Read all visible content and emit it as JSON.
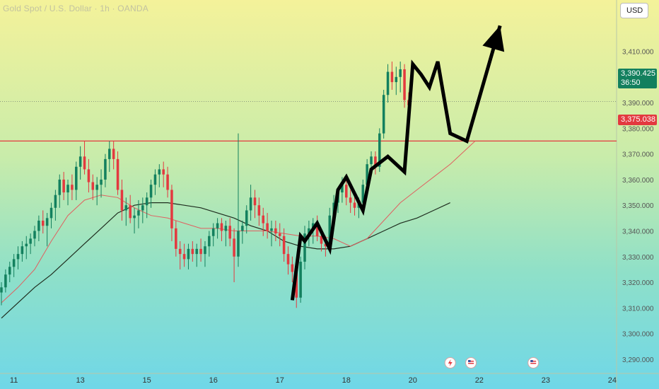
{
  "header": {
    "title": "Gold Spot / U.S. Dollar · 1h · OANDA",
    "currency": "USD"
  },
  "price_tag": {
    "price": "3,390.425",
    "countdown": "36:50"
  },
  "level_tag": {
    "price": "3,375.038"
  },
  "colors": {
    "up": "#13805e",
    "down": "#e3393f",
    "ma_fast": "#e06060",
    "ma_slow": "#1f2d1f",
    "level": "#e3393f",
    "arrow": "#000000"
  },
  "chart_data": {
    "type": "candlestick",
    "symbol": "Gold Spot / U.S. Dollar",
    "timeframe": "1h",
    "ylim": [
      3285,
      3430
    ],
    "yticks": [
      3290,
      3300,
      3310,
      3320,
      3330,
      3340,
      3350,
      3360,
      3370,
      3380,
      3390,
      3400,
      3410
    ],
    "ytick_labels": [
      "3,290.000",
      "3,300.000",
      "3,310.000",
      "3,320.000",
      "3,330.000",
      "3,340.000",
      "3,350.000",
      "3,360.000",
      "3,370.000",
      "3,380.000",
      "3,390.000",
      "3,400.000",
      "3,410.000"
    ],
    "xlim": [
      0,
      146
    ],
    "xticks": [
      {
        "x": 3,
        "label": "11"
      },
      {
        "x": 19,
        "label": "13"
      },
      {
        "x": 35,
        "label": "15"
      },
      {
        "x": 51,
        "label": "16"
      },
      {
        "x": 67,
        "label": "17"
      },
      {
        "x": 83,
        "label": "18"
      },
      {
        "x": 99,
        "label": "20"
      },
      {
        "x": 115,
        "label": "22"
      },
      {
        "x": 131,
        "label": "23"
      },
      {
        "x": 147,
        "label": "24"
      }
    ],
    "current_price": 3390.425,
    "horizontal_level": 3375.038,
    "candles": [
      [
        3316,
        3320,
        3311,
        3318
      ],
      [
        3318,
        3325,
        3316,
        3323
      ],
      [
        3323,
        3328,
        3320,
        3326
      ],
      [
        3326,
        3331,
        3322,
        3329
      ],
      [
        3329,
        3334,
        3325,
        3331
      ],
      [
        3331,
        3336,
        3328,
        3334
      ],
      [
        3334,
        3338,
        3329,
        3335
      ],
      [
        3335,
        3339,
        3331,
        3337
      ],
      [
        3337,
        3342,
        3334,
        3340
      ],
      [
        3340,
        3346,
        3336,
        3344
      ],
      [
        3344,
        3348,
        3339,
        3342
      ],
      [
        3342,
        3347,
        3334,
        3345
      ],
      [
        3345,
        3351,
        3341,
        3349
      ],
      [
        3349,
        3356,
        3344,
        3354
      ],
      [
        3354,
        3362,
        3349,
        3360
      ],
      [
        3360,
        3363,
        3352,
        3355
      ],
      [
        3355,
        3360,
        3350,
        3358
      ],
      [
        3358,
        3362,
        3352,
        3356
      ],
      [
        3356,
        3367,
        3352,
        3365
      ],
      [
        3365,
        3373,
        3360,
        3369
      ],
      [
        3369,
        3375,
        3362,
        3364
      ],
      [
        3364,
        3368,
        3355,
        3359
      ],
      [
        3359,
        3362,
        3352,
        3356
      ],
      [
        3356,
        3361,
        3350,
        3358
      ],
      [
        3358,
        3364,
        3353,
        3360
      ],
      [
        3360,
        3370,
        3357,
        3368
      ],
      [
        3368,
        3375,
        3363,
        3372
      ],
      [
        3372,
        3375,
        3364,
        3368
      ],
      [
        3368,
        3371,
        3354,
        3356
      ],
      [
        3356,
        3360,
        3344,
        3348
      ],
      [
        3348,
        3353,
        3342,
        3350
      ],
      [
        3350,
        3354,
        3343,
        3345
      ],
      [
        3345,
        3349,
        3339,
        3346
      ],
      [
        3346,
        3352,
        3341,
        3348
      ],
      [
        3348,
        3353,
        3343,
        3350
      ],
      [
        3350,
        3355,
        3345,
        3353
      ],
      [
        3353,
        3360,
        3349,
        3358
      ],
      [
        3358,
        3364,
        3354,
        3362
      ],
      [
        3362,
        3366,
        3357,
        3364
      ],
      [
        3364,
        3367,
        3357,
        3362
      ],
      [
        3362,
        3365,
        3353,
        3356
      ],
      [
        3356,
        3358,
        3336,
        3341
      ],
      [
        3341,
        3344,
        3330,
        3333
      ],
      [
        3333,
        3336,
        3325,
        3331
      ],
      [
        3331,
        3335,
        3326,
        3329
      ],
      [
        3329,
        3335,
        3325,
        3333
      ],
      [
        3333,
        3336,
        3328,
        3331
      ],
      [
        3331,
        3335,
        3326,
        3333
      ],
      [
        3333,
        3337,
        3328,
        3331
      ],
      [
        3331,
        3336,
        3326,
        3334
      ],
      [
        3334,
        3340,
        3330,
        3338
      ],
      [
        3338,
        3343,
        3334,
        3341
      ],
      [
        3341,
        3345,
        3337,
        3343
      ],
      [
        3343,
        3345,
        3336,
        3340
      ],
      [
        3340,
        3344,
        3334,
        3342
      ],
      [
        3342,
        3345,
        3334,
        3337
      ],
      [
        3337,
        3341,
        3320,
        3330
      ],
      [
        3330,
        3378,
        3326,
        3340
      ],
      [
        3340,
        3344,
        3335,
        3342
      ],
      [
        3342,
        3350,
        3339,
        3348
      ],
      [
        3348,
        3358,
        3344,
        3353
      ],
      [
        3353,
        3356,
        3345,
        3350
      ],
      [
        3350,
        3353,
        3342,
        3346
      ],
      [
        3346,
        3349,
        3338,
        3343
      ],
      [
        3343,
        3347,
        3337,
        3340
      ],
      [
        3340,
        3344,
        3334,
        3341
      ],
      [
        3341,
        3344,
        3336,
        3339
      ],
      [
        3339,
        3343,
        3334,
        3338
      ],
      [
        3338,
        3341,
        3328,
        3331
      ],
      [
        3331,
        3334,
        3323,
        3327
      ],
      [
        3327,
        3330,
        3320,
        3324
      ],
      [
        3324,
        3327,
        3310,
        3314
      ],
      [
        3314,
        3330,
        3312,
        3328
      ],
      [
        3328,
        3342,
        3325,
        3339
      ],
      [
        3339,
        3344,
        3334,
        3341
      ],
      [
        3341,
        3345,
        3335,
        3343
      ],
      [
        3343,
        3346,
        3336,
        3338
      ],
      [
        3338,
        3341,
        3332,
        3335
      ],
      [
        3335,
        3338,
        3330,
        3334
      ],
      [
        3334,
        3349,
        3332,
        3346
      ],
      [
        3346,
        3354,
        3342,
        3351
      ],
      [
        3351,
        3357,
        3347,
        3355
      ],
      [
        3355,
        3361,
        3351,
        3358
      ],
      [
        3358,
        3360,
        3350,
        3353
      ],
      [
        3353,
        3356,
        3347,
        3351
      ],
      [
        3351,
        3354,
        3346,
        3349
      ],
      [
        3349,
        3353,
        3345,
        3351
      ],
      [
        3351,
        3360,
        3349,
        3358
      ],
      [
        3358,
        3368,
        3355,
        3366
      ],
      [
        3366,
        3371,
        3362,
        3369
      ],
      [
        3369,
        3371,
        3362,
        3365
      ],
      [
        3365,
        3380,
        3363,
        3378
      ],
      [
        3378,
        3395,
        3376,
        3393
      ],
      [
        3393,
        3405,
        3390,
        3402
      ],
      [
        3402,
        3406,
        3395,
        3398
      ],
      [
        3398,
        3404,
        3393,
        3400
      ],
      [
        3400,
        3406,
        3394,
        3403
      ],
      [
        3403,
        3405,
        3388,
        3391
      ],
      [
        3391,
        3394,
        3385,
        3389
      ]
    ],
    "ma_fast": [
      [
        0,
        3312
      ],
      [
        4,
        3318
      ],
      [
        8,
        3325
      ],
      [
        12,
        3336
      ],
      [
        16,
        3346
      ],
      [
        20,
        3352
      ],
      [
        24,
        3354
      ],
      [
        28,
        3353
      ],
      [
        32,
        3349
      ],
      [
        36,
        3346
      ],
      [
        40,
        3345
      ],
      [
        44,
        3343
      ],
      [
        48,
        3341
      ],
      [
        52,
        3341
      ],
      [
        56,
        3340
      ],
      [
        60,
        3340
      ],
      [
        64,
        3340
      ],
      [
        68,
        3339
      ],
      [
        72,
        3338
      ],
      [
        76,
        3338
      ],
      [
        80,
        3337
      ],
      [
        84,
        3334
      ],
      [
        88,
        3337
      ],
      [
        92,
        3344
      ],
      [
        96,
        3351
      ],
      [
        100,
        3356
      ],
      [
        104,
        3361
      ],
      [
        108,
        3366
      ],
      [
        112,
        3372
      ],
      [
        114,
        3375
      ]
    ],
    "ma_slow": [
      [
        0,
        3306
      ],
      [
        4,
        3312
      ],
      [
        8,
        3318
      ],
      [
        12,
        3323
      ],
      [
        16,
        3329
      ],
      [
        20,
        3335
      ],
      [
        24,
        3341
      ],
      [
        28,
        3347
      ],
      [
        32,
        3350
      ],
      [
        36,
        3351
      ],
      [
        40,
        3351
      ],
      [
        44,
        3350
      ],
      [
        48,
        3349
      ],
      [
        52,
        3347
      ],
      [
        56,
        3345
      ],
      [
        60,
        3342
      ],
      [
        64,
        3340
      ],
      [
        68,
        3336
      ],
      [
        72,
        3334
      ],
      [
        76,
        3333
      ],
      [
        80,
        3333
      ],
      [
        84,
        3334
      ],
      [
        88,
        3337
      ],
      [
        92,
        3340
      ],
      [
        96,
        3343
      ],
      [
        100,
        3345
      ],
      [
        104,
        3348
      ],
      [
        108,
        3351
      ]
    ],
    "projection_path": [
      [
        70,
        3313
      ],
      [
        72,
        3338
      ],
      [
        73,
        3336
      ],
      [
        76,
        3343
      ],
      [
        79,
        3333
      ],
      [
        81,
        3356
      ],
      [
        83,
        3361
      ],
      [
        87,
        3348
      ],
      [
        89,
        3364
      ],
      [
        93,
        3369
      ],
      [
        97,
        3363
      ],
      [
        99,
        3405
      ],
      [
        101,
        3401
      ],
      [
        103,
        3396
      ],
      [
        105,
        3406
      ],
      [
        108,
        3378
      ],
      [
        112,
        3375
      ],
      [
        120,
        3420
      ]
    ],
    "events": [
      {
        "x": 108,
        "type": "flash"
      },
      {
        "x": 113,
        "type": "flag"
      },
      {
        "x": 128,
        "type": "flag"
      }
    ]
  }
}
